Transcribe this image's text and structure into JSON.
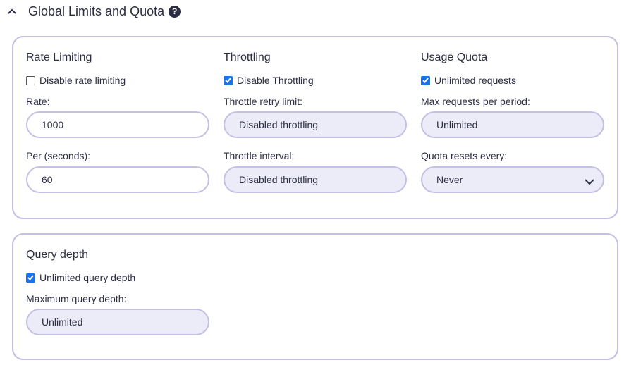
{
  "header": {
    "title": "Global Limits and Quota"
  },
  "rate_limiting": {
    "heading": "Rate Limiting",
    "checkbox_label": "Disable rate limiting",
    "checked": false,
    "rate_label": "Rate:",
    "rate_value": "1000",
    "per_label": "Per (seconds):",
    "per_value": "60"
  },
  "throttling": {
    "heading": "Throttling",
    "checkbox_label": "Disable Throttling",
    "checked": true,
    "retry_label": "Throttle retry limit:",
    "retry_value": "Disabled throttling",
    "interval_label": "Throttle interval:",
    "interval_value": "Disabled throttling"
  },
  "usage_quota": {
    "heading": "Usage Quota",
    "checkbox_label": "Unlimited requests",
    "checked": true,
    "max_label": "Max requests per period:",
    "max_value": "Unlimited",
    "resets_label": "Quota resets every:",
    "resets_value": "Never"
  },
  "query_depth": {
    "heading": "Query depth",
    "checkbox_label": "Unlimited query depth",
    "checked": true,
    "max_label": "Maximum query depth:",
    "max_value": "Unlimited"
  }
}
